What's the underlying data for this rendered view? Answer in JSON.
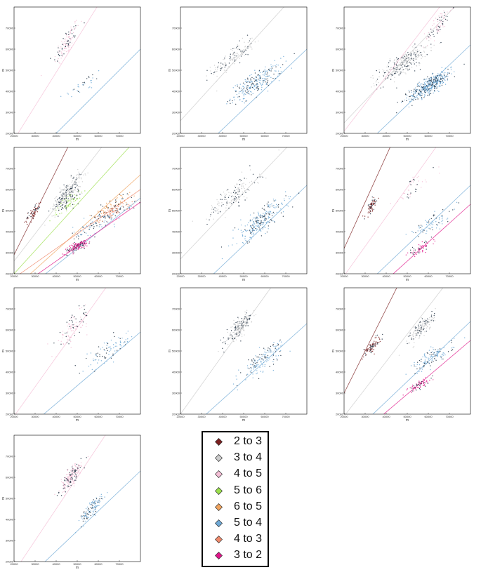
{
  "chart_data": {
    "type": "scatter",
    "x_ticks": [
      "20000",
      "30000",
      "40000",
      "50000",
      "60000",
      "70000"
    ],
    "y_ticks": [
      "20000",
      "30000",
      "40000",
      "50000",
      "60000",
      "70000"
    ],
    "xlabel": "m",
    "ylabel": "m",
    "xlim": [
      20000,
      80000
    ],
    "ylim": [
      20000,
      80000
    ],
    "grid": false,
    "legend_placement": "bottom-center",
    "series_styles": [
      {
        "name": "2 to 3",
        "color": "#7a1f1f"
      },
      {
        "name": "3 to 4",
        "color": "#cccccc"
      },
      {
        "name": "4 to 5",
        "color": "#f5bfd6"
      },
      {
        "name": "5 to 6",
        "color": "#9be04b"
      },
      {
        "name": "6 to 5",
        "color": "#f0a35e"
      },
      {
        "name": "5 to 4",
        "color": "#6fa9d6"
      },
      {
        "name": "4 to 3",
        "color": "#f08a6c"
      },
      {
        "name": "3 to 2",
        "color": "#e0168a"
      }
    ],
    "panels": [
      {
        "id": 1,
        "series": [
          {
            "ref": 2,
            "trend": {
              "slope": 1.6,
              "intercept": -15000
            },
            "cluster": {
              "cx": 45000,
              "cy": 63000,
              "sx": 3000,
              "sy": 6000,
              "n": 120
            }
          },
          {
            "ref": 5,
            "trend": {
              "slope": 1.0,
              "intercept": -20000
            },
            "cluster": {
              "cx": 53000,
              "cy": 43000,
              "sx": 5000,
              "sy": 4000,
              "n": 30
            }
          }
        ]
      },
      {
        "id": 2,
        "series": [
          {
            "ref": 1,
            "trend": {
              "slope": 1.1,
              "intercept": 4000
            },
            "cluster": {
              "cx": 45000,
              "cy": 56000,
              "sx": 5000,
              "sy": 5000,
              "n": 150
            }
          },
          {
            "ref": 5,
            "trend": {
              "slope": 0.95,
              "intercept": -16000
            },
            "cluster": {
              "cx": 56000,
              "cy": 44000,
              "sx": 6000,
              "sy": 5000,
              "n": 260
            }
          }
        ]
      },
      {
        "id": 3,
        "series": [
          {
            "ref": 1,
            "trend": {
              "slope": 1.05,
              "intercept": 4000
            },
            "cluster": {
              "cx": 48000,
              "cy": 53000,
              "sx": 6000,
              "sy": 5000,
              "n": 320
            }
          },
          {
            "ref": 2,
            "trend": {
              "slope": 1.3,
              "intercept": -5000
            },
            "cluster": {
              "cx": 65000,
              "cy": 72000,
              "sx": 3000,
              "sy": 5000,
              "n": 90
            }
          },
          {
            "ref": 5,
            "trend": {
              "slope": 0.95,
              "intercept": -14000
            },
            "cluster": {
              "cx": 61000,
              "cy": 43000,
              "sx": 5000,
              "sy": 4000,
              "n": 420
            }
          }
        ]
      },
      {
        "id": 4,
        "series": [
          {
            "ref": 0,
            "trend": {
              "slope": 2.0,
              "intercept": -11000
            },
            "cluster": {
              "cx": 29000,
              "cy": 49000,
              "sx": 2000,
              "sy": 3000,
              "n": 60
            }
          },
          {
            "ref": 1,
            "trend": {
              "slope": 1.3,
              "intercept": 0
            },
            "cluster": {
              "cx": 45000,
              "cy": 58000,
              "sx": 3500,
              "sy": 5000,
              "n": 260
            }
          },
          {
            "ref": 3,
            "trend": {
              "slope": 1.1,
              "intercept": -2000
            },
            "cluster": {
              "cx": 46000,
              "cy": 54000,
              "sx": 3000,
              "sy": 4000,
              "n": 80
            }
          },
          {
            "ref": 4,
            "trend": {
              "slope": 0.9,
              "intercept": -5000
            },
            "cluster": {
              "cx": 66000,
              "cy": 52000,
              "sx": 5000,
              "sy": 4000,
              "n": 80
            }
          },
          {
            "ref": 5,
            "trend": {
              "slope": 0.8,
              "intercept": -8000
            },
            "cluster": {
              "cx": 60000,
              "cy": 44000,
              "sx": 6000,
              "sy": 4000,
              "n": 90
            }
          },
          {
            "ref": 6,
            "trend": {
              "slope": 0.7,
              "intercept": 4000
            },
            "cluster": {
              "cx": 68000,
              "cy": 50000,
              "sx": 5000,
              "sy": 3000,
              "n": 90
            }
          },
          {
            "ref": 7,
            "trend": {
              "slope": 0.7,
              "intercept": -2000
            },
            "cluster": {
              "cx": 50000,
              "cy": 33000,
              "sx": 3000,
              "sy": 2000,
              "n": 140
            }
          }
        ]
      },
      {
        "id": 5,
        "series": [
          {
            "ref": 1,
            "trend": {
              "slope": 1.05,
              "intercept": 6000
            },
            "cluster": {
              "cx": 45000,
              "cy": 57000,
              "sx": 6000,
              "sy": 6000,
              "n": 170
            }
          },
          {
            "ref": 5,
            "trend": {
              "slope": 0.95,
              "intercept": -14000
            },
            "cluster": {
              "cx": 58000,
              "cy": 45000,
              "sx": 6000,
              "sy": 6000,
              "n": 250
            }
          }
        ]
      },
      {
        "id": 6,
        "series": [
          {
            "ref": 0,
            "trend": {
              "slope": 2.2,
              "intercept": -12000
            },
            "cluster": {
              "cx": 33000,
              "cy": 52000,
              "sx": 1500,
              "sy": 3000,
              "n": 70
            }
          },
          {
            "ref": 2,
            "trend": {
              "slope": 1.4,
              "intercept": -9000
            },
            "cluster": {
              "cx": 53000,
              "cy": 61000,
              "sx": 5000,
              "sy": 5000,
              "n": 40
            }
          },
          {
            "ref": 5,
            "trend": {
              "slope": 0.95,
              "intercept": -14000
            },
            "cluster": {
              "cx": 62000,
              "cy": 44000,
              "sx": 6000,
              "sy": 4000,
              "n": 70
            }
          },
          {
            "ref": 7,
            "trend": {
              "slope": 0.9,
              "intercept": -19000
            },
            "cluster": {
              "cx": 56000,
              "cy": 32000,
              "sx": 3000,
              "sy": 2000,
              "n": 60
            }
          }
        ]
      },
      {
        "id": 7,
        "series": [
          {
            "ref": 2,
            "trend": {
              "slope": 1.4,
              "intercept": -9000
            },
            "cluster": {
              "cx": 48000,
              "cy": 61000,
              "sx": 4000,
              "sy": 6000,
              "n": 110
            }
          },
          {
            "ref": 5,
            "trend": {
              "slope": 0.85,
              "intercept": -9000
            },
            "cluster": {
              "cx": 65000,
              "cy": 50000,
              "sx": 6000,
              "sy": 5000,
              "n": 90
            }
          }
        ]
      },
      {
        "id": 8,
        "series": [
          {
            "ref": 1,
            "trend": {
              "slope": 1.4,
              "intercept": -8000
            },
            "cluster": {
              "cx": 48000,
              "cy": 61000,
              "sx": 3000,
              "sy": 4000,
              "n": 220
            }
          },
          {
            "ref": 5,
            "trend": {
              "slope": 0.9,
              "intercept": -9000
            },
            "cluster": {
              "cx": 59000,
              "cy": 46000,
              "sx": 5000,
              "sy": 5000,
              "n": 150
            }
          }
        ]
      },
      {
        "id": 9,
        "series": [
          {
            "ref": 0,
            "trend": {
              "slope": 2.0,
              "intercept": -10000
            },
            "cluster": {
              "cx": 33000,
              "cy": 52000,
              "sx": 2000,
              "sy": 3000,
              "n": 80
            }
          },
          {
            "ref": 1,
            "trend": {
              "slope": 1.3,
              "intercept": -7000
            },
            "cluster": {
              "cx": 57000,
              "cy": 61000,
              "sx": 3000,
              "sy": 4000,
              "n": 160
            }
          },
          {
            "ref": 5,
            "trend": {
              "slope": 0.95,
              "intercept": -12000
            },
            "cluster": {
              "cx": 62000,
              "cy": 47000,
              "sx": 5000,
              "sy": 4000,
              "n": 120
            }
          },
          {
            "ref": 7,
            "trend": {
              "slope": 0.85,
              "intercept": -13000
            },
            "cluster": {
              "cx": 56000,
              "cy": 34000,
              "sx": 3000,
              "sy": 2000,
              "n": 70
            }
          }
        ]
      },
      {
        "id": 10,
        "series": [
          {
            "ref": 2,
            "trend": {
              "slope": 1.5,
              "intercept": -15000
            },
            "cluster": {
              "cx": 47000,
              "cy": 60000,
              "sx": 2500,
              "sy": 4000,
              "n": 220
            }
          },
          {
            "ref": 5,
            "trend": {
              "slope": 0.95,
              "intercept": -13000
            },
            "cluster": {
              "cx": 57000,
              "cy": 45000,
              "sx": 3000,
              "sy": 4000,
              "n": 120
            }
          }
        ]
      }
    ]
  }
}
